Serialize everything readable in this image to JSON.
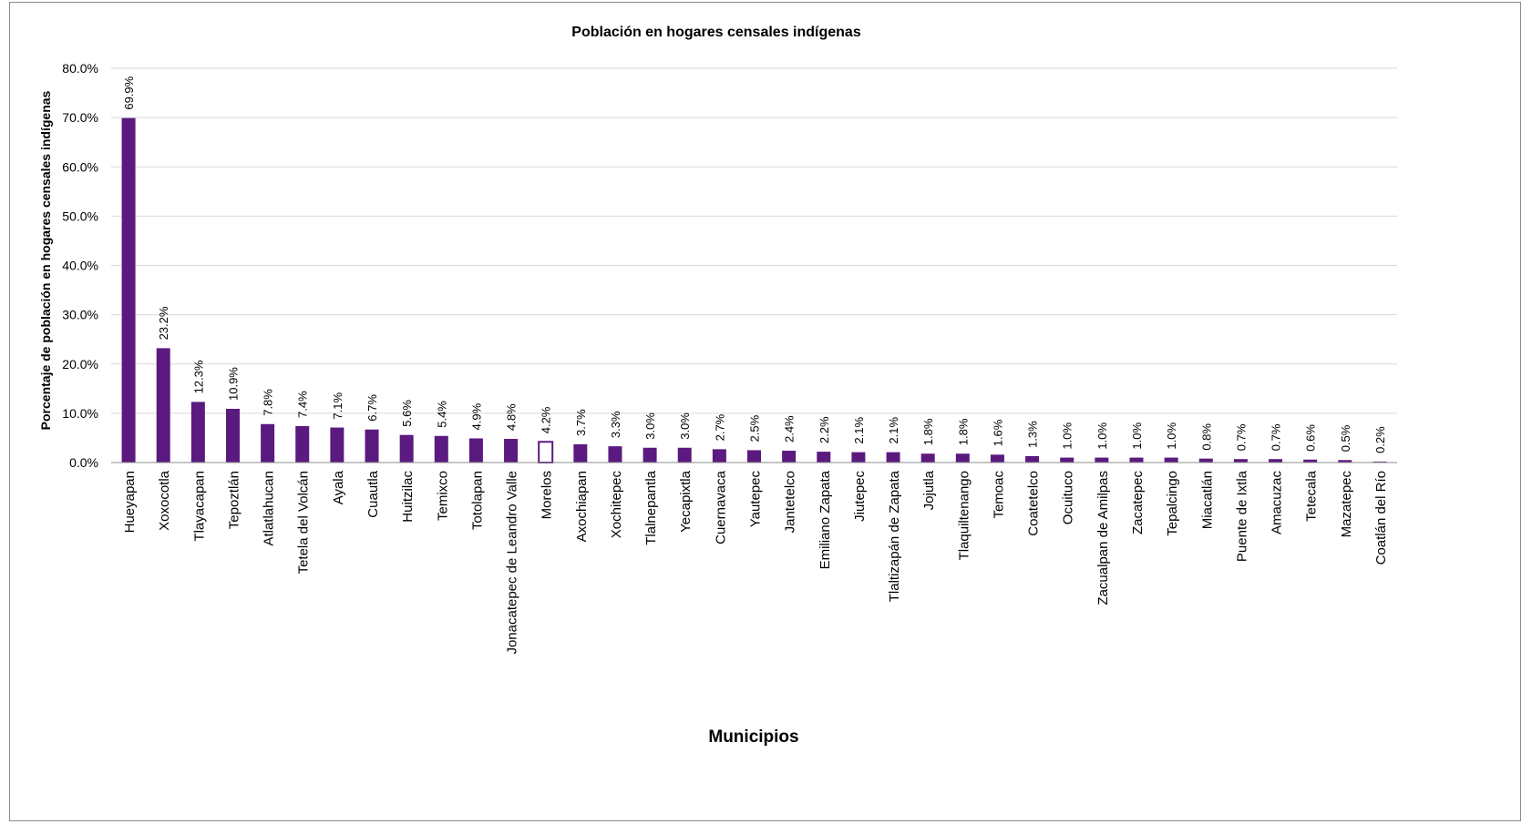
{
  "chart_data": {
    "type": "bar",
    "title": "Población en hogares censales indígenas",
    "xlabel": "Municipios",
    "ylabel": "Porcentaje de población en hogares censales indígenas",
    "ylim": [
      0,
      80
    ],
    "y_tick_values": [
      0,
      10,
      20,
      30,
      40,
      50,
      60,
      70,
      80
    ],
    "y_tick_labels": [
      "0.0%",
      "10.0%",
      "20.0%",
      "30.0%",
      "40.0%",
      "50.0%",
      "60.0%",
      "70.0%",
      "80.0%"
    ],
    "grid": true,
    "legend": "none",
    "bar_color": "#5b1a7f",
    "highlight_outline_color": "#5b1a7f",
    "highlight_category": "Morelos",
    "categories": [
      "Hueyapan",
      "Xoxocotla",
      "Tlayacapan",
      "Tepoztlán",
      "Atlatlahucan",
      "Tetela del Volcán",
      "Ayala",
      "Cuautla",
      "Huitzilac",
      "Temixco",
      "Totolapan",
      "Jonacatepec de Leandro Valle",
      "Morelos",
      "Axochiapan",
      "Xochitepec",
      "Tlalnepantla",
      "Yecapixtla",
      "Cuernavaca",
      "Yautepec",
      "Jantetelco",
      "Emiliano Zapata",
      "Jiutepec",
      "Tlaltizapán de Zapata",
      "Jojutla",
      "Tlaquiltenango",
      "Temoac",
      "Coatetelco",
      "Ocuituco",
      "Zacualpan de Amilpas",
      "Zacatepec",
      "Tepalcingo",
      "Miacatlán",
      "Puente de Ixtla",
      "Amacuzac",
      "Tetecala",
      "Mazatepec",
      "Coatlán del Río"
    ],
    "values": [
      69.9,
      23.2,
      12.3,
      10.9,
      7.8,
      7.4,
      7.1,
      6.7,
      5.6,
      5.4,
      4.9,
      4.8,
      4.2,
      3.7,
      3.3,
      3.0,
      3.0,
      2.7,
      2.5,
      2.4,
      2.2,
      2.1,
      2.1,
      1.8,
      1.8,
      1.6,
      1.3,
      1.0,
      1.0,
      1.0,
      1.0,
      0.8,
      0.7,
      0.7,
      0.6,
      0.5,
      0.2
    ],
    "data_labels": [
      "69.9%",
      "23.2%",
      "12.3%",
      "10.9%",
      "7.8%",
      "7.4%",
      "7.1%",
      "6.7%",
      "5.6%",
      "5.4%",
      "4.9%",
      "4.8%",
      "4.2%",
      "3.7%",
      "3.3%",
      "3.0%",
      "3.0%",
      "2.7%",
      "2.5%",
      "2.4%",
      "2.2%",
      "2.1%",
      "2.1%",
      "1.8%",
      "1.8%",
      "1.6%",
      "1.3%",
      "1.0%",
      "1.0%",
      "1.0%",
      "1.0%",
      "0.8%",
      "0.7%",
      "0.7%",
      "0.6%",
      "0.5%",
      "0.2%"
    ]
  }
}
